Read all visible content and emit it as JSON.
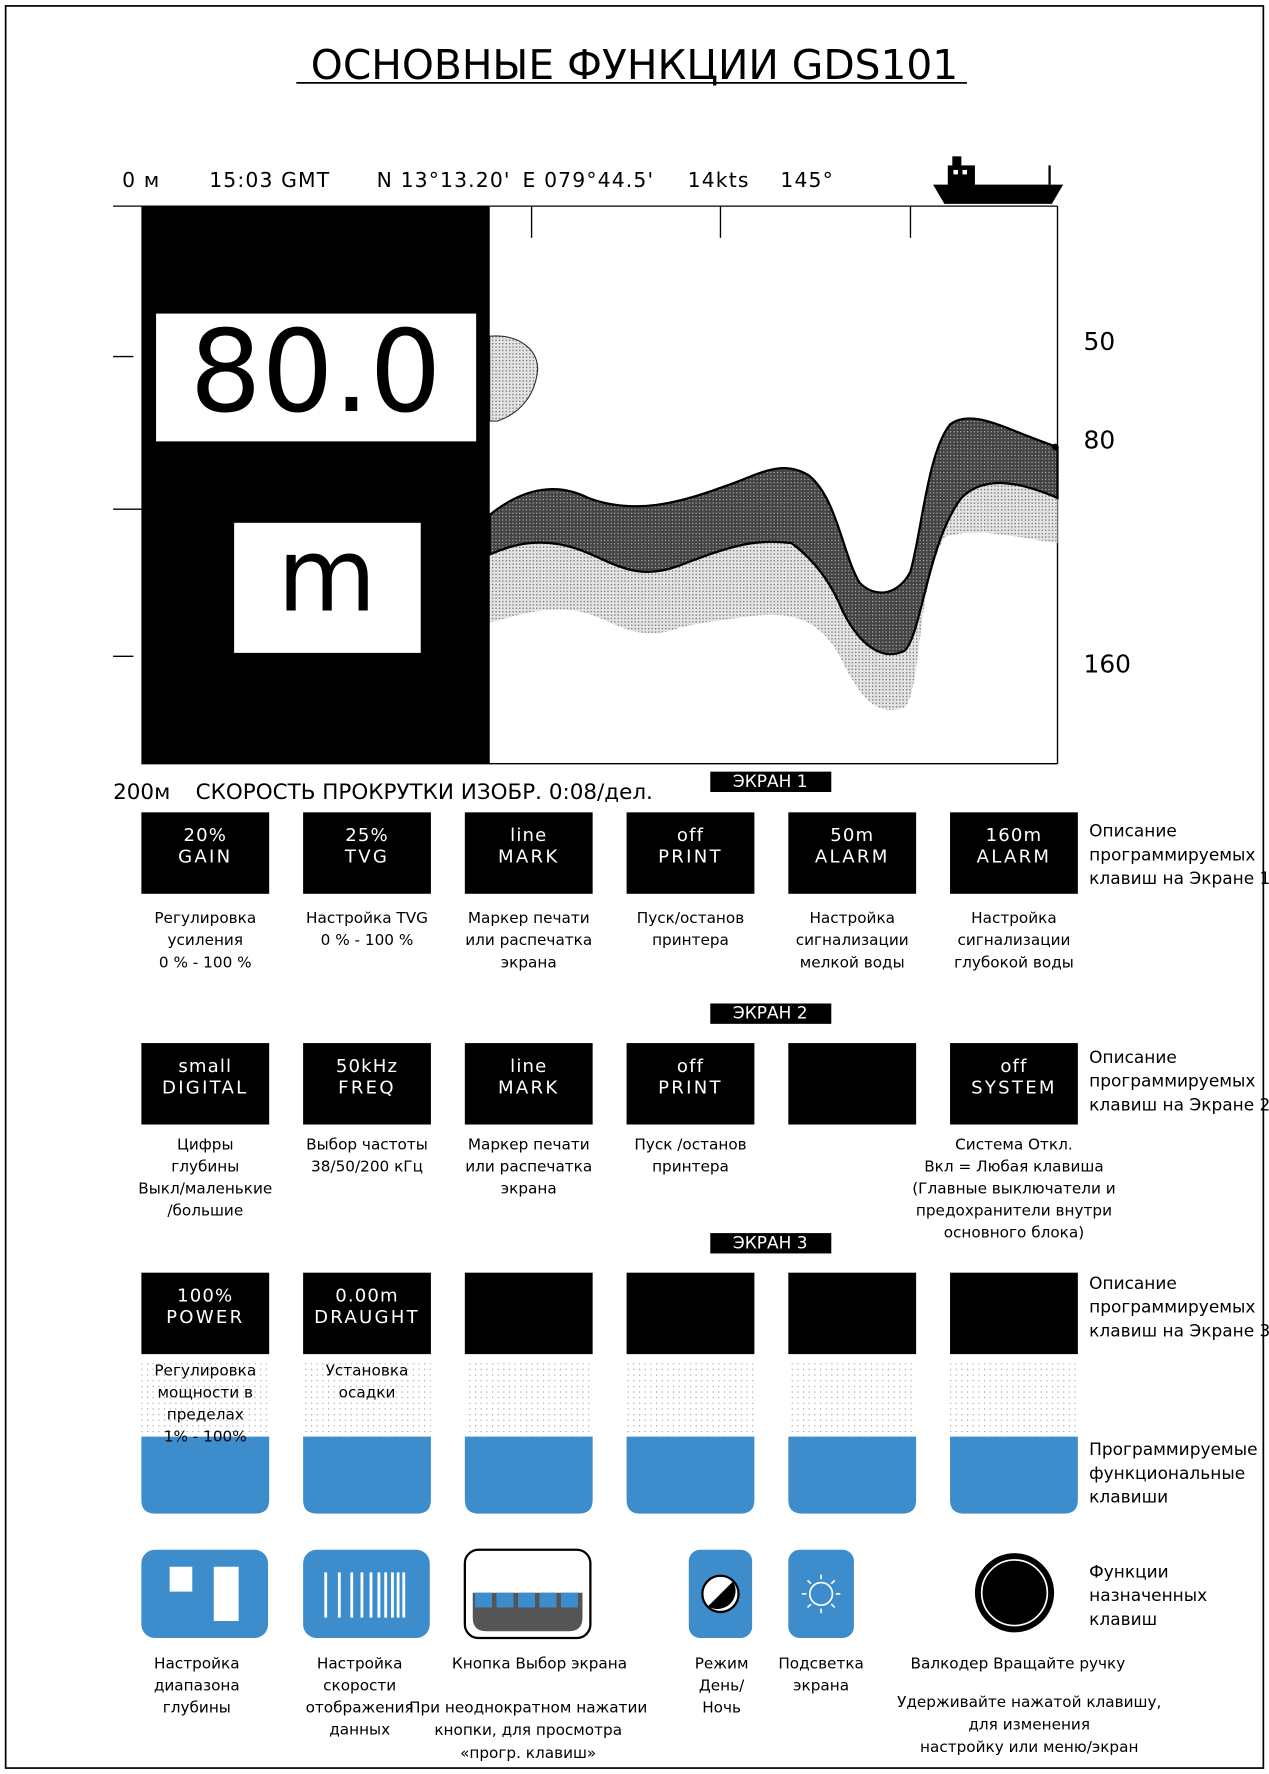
{
  "title": "ОСНОВНЫЕ ФУНКЦИИ GDS101",
  "status_bar": [
    "0 м",
    "15:03 GMT",
    "N 13°13.20'",
    "E 079°44.5'",
    "14kts",
    "145°"
  ],
  "depth": {
    "value": "80.0",
    "unit": "m"
  },
  "depth_scale": [
    "50",
    "80",
    "160"
  ],
  "range_label": "200м",
  "scroll_speed": "СКОРОСТЬ ПРОКРУТКИ ИЗОБР. 0:08/дел.",
  "screens": [
    {
      "label": "ЭКРАН 1",
      "keys": [
        {
          "top": "20%",
          "bottom": "GAIN",
          "description": [
            "Регулировка",
            "усиления",
            "0 % - 100 %"
          ]
        },
        {
          "top": "25%",
          "bottom": "TVG",
          "description": [
            "Настройка TVG",
            "0 % - 100 %"
          ]
        },
        {
          "top": "line",
          "bottom": "MARK",
          "description": [
            "Маркер печати",
            "или распечатка",
            "экрана"
          ]
        },
        {
          "top": "off",
          "bottom": "PRINT",
          "description": [
            "Пуск/останов",
            "принтера"
          ]
        },
        {
          "top": "50m",
          "bottom": "ALARM",
          "description": [
            "Настройка",
            "сигнализации",
            "мелкой воды"
          ]
        },
        {
          "top": "160m",
          "bottom": "ALARM",
          "description": [
            "Настройка",
            "сигнализации",
            "глубокой воды"
          ]
        }
      ],
      "note": [
        "Описание",
        "программируемых",
        "клавиш на Экране 1"
      ]
    },
    {
      "label": "ЭКРАН 2",
      "keys": [
        {
          "top": "small",
          "bottom": "DIGITAL",
          "description": [
            "Цифры",
            "глубины",
            "Выкл/маленькие",
            "/большие"
          ]
        },
        {
          "top": "50kHz",
          "bottom": "FREQ",
          "description": [
            "Выбор частоты",
            "38/50/200 кГц"
          ]
        },
        {
          "top": "line",
          "bottom": "MARK",
          "description": [
            "Маркер печати",
            "или распечатка",
            "экрана"
          ]
        },
        {
          "top": "off",
          "bottom": "PRINT",
          "description": [
            "Пуск /останов",
            "принтера"
          ]
        },
        null,
        {
          "top": "off",
          "bottom": "SYSTEM",
          "description": [
            "Система Откл.",
            "Вкл = Любая клавиша",
            "(Главные выключатели и",
            "предохранители внутри",
            "основного блока)"
          ]
        }
      ],
      "note": [
        "Описание",
        "программируемых",
        "клавиш на Экране 2"
      ]
    },
    {
      "label": "ЭКРАН 3",
      "keys": [
        {
          "top": "100%",
          "bottom": "POWER",
          "description": [
            "Регулировка",
            "мощности в",
            "пределах",
            "1% - 100%"
          ]
        },
        {
          "top": "0.00m",
          "bottom": "DRAUGHT",
          "description": [
            "Установка",
            "осадки"
          ]
        },
        null,
        null,
        null,
        null
      ],
      "note": [
        "Описание",
        "программируемых",
        "клавиш на Экране 3"
      ]
    }
  ],
  "softkeys_note": [
    "Программируемые",
    "функциональные",
    "клавиши"
  ],
  "buttons": [
    {
      "description": [
        "Настройка",
        "диапазона",
        "глубины"
      ]
    },
    {
      "description": [
        "Настройка",
        "скорости",
        "отображения",
        "данных"
      ]
    },
    {
      "description": [
        "Кнопка Выбор экрана"
      ],
      "hint": [
        "При неоднократном нажатии",
        "кнопки, для просмотра",
        "«прогр. клавиш»"
      ]
    },
    {
      "description": [
        "Режим",
        "День/",
        "Ночь"
      ]
    },
    {
      "description": [
        "Подсветка",
        "экрана"
      ]
    },
    {
      "description": [
        "Валкодер Вращайте ручку"
      ],
      "hint": [
        "Удерживайте нажатой клавишу,",
        "для изменения",
        "настройку или меню/экран"
      ]
    }
  ],
  "buttons_note": [
    "Функции",
    "назначенных",
    "клавиш"
  ]
}
